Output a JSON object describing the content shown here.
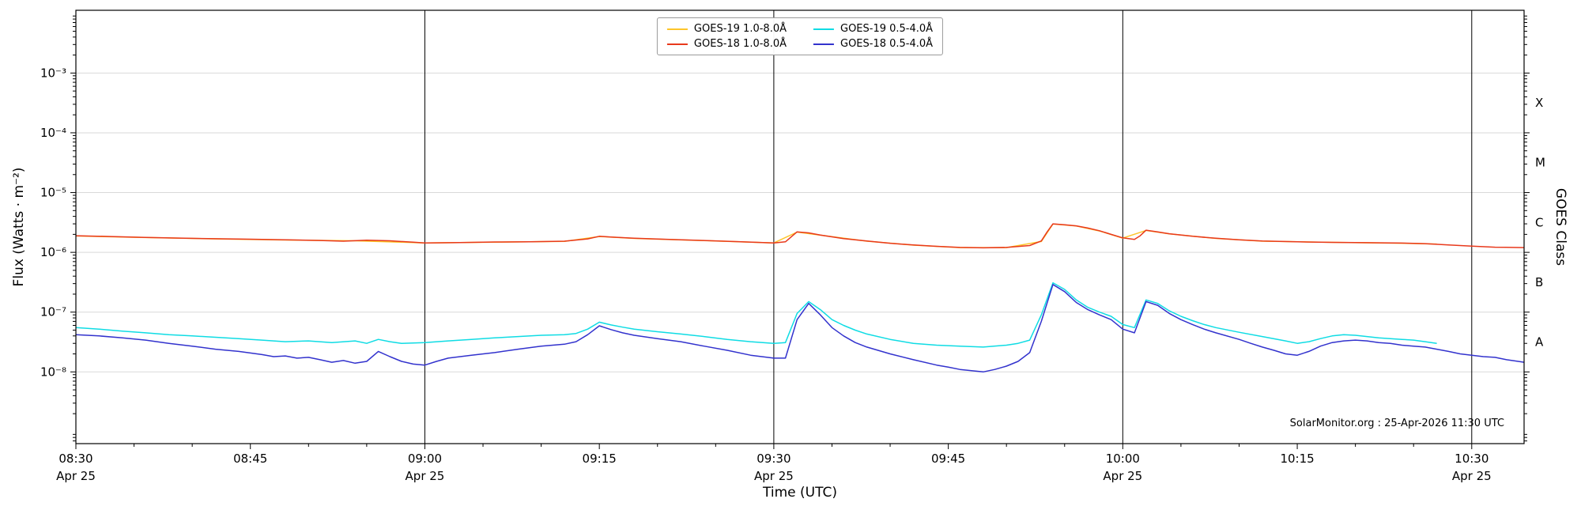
{
  "chart_data": {
    "type": "line",
    "title": "",
    "xlabel": "Time (UTC)",
    "ylabel": "Flux (Watts · m⁻²)",
    "ylabel_right": "GOES Class",
    "watermark": "SolarMonitor.org : 25-Apr-2026 11:30 UTC",
    "grid": "horizontal-decades",
    "grid_color": "#d9d9d9",
    "axis_color": "#000000",
    "legend_position": "top-center",
    "x_domain_minutes": [
      0,
      124.5
    ],
    "x_minor_step_minutes": 5,
    "ylim_log10": [
      -9.2,
      -1.95
    ],
    "x_ticks": [
      {
        "minute": 0,
        "label": "08:30",
        "date": "Apr 25"
      },
      {
        "minute": 15,
        "label": "08:45"
      },
      {
        "minute": 30,
        "label": "09:00",
        "date": "Apr 25",
        "line": true
      },
      {
        "minute": 45,
        "label": "09:15"
      },
      {
        "minute": 60,
        "label": "09:30",
        "date": "Apr 25",
        "line": true
      },
      {
        "minute": 75,
        "label": "09:45"
      },
      {
        "minute": 90,
        "label": "10:00",
        "date": "Apr 25",
        "line": true
      },
      {
        "minute": 105,
        "label": "10:15"
      },
      {
        "minute": 120,
        "label": "10:30",
        "date": "Apr 25",
        "line": true
      }
    ],
    "y_ticks": [
      {
        "exp": -3,
        "label": "10⁻³"
      },
      {
        "exp": -4,
        "label": "10⁻⁴"
      },
      {
        "exp": -5,
        "label": "10⁻⁵"
      },
      {
        "exp": -6,
        "label": "10⁻⁶"
      },
      {
        "exp": -7,
        "label": "10⁻⁷"
      },
      {
        "exp": -8,
        "label": "10⁻⁸"
      }
    ],
    "goes_classes": [
      {
        "label": "X",
        "log10_mid": -3.5
      },
      {
        "label": "M",
        "log10_mid": -4.5
      },
      {
        "label": "C",
        "log10_mid": -5.5
      },
      {
        "label": "B",
        "log10_mid": -6.5
      },
      {
        "label": "A",
        "log10_mid": -7.5
      }
    ],
    "series": [
      {
        "key": "goes19-long",
        "name": "GOES-19 1.0-8.0Å",
        "color": "#fdc52a",
        "points": [
          [
            0,
            1.88e-06
          ],
          [
            6,
            1.77e-06
          ],
          [
            12,
            1.68e-06
          ],
          [
            18,
            1.61e-06
          ],
          [
            24,
            1.56e-06
          ],
          [
            30,
            1.44e-06
          ],
          [
            36,
            1.48e-06
          ],
          [
            42,
            1.53e-06
          ],
          [
            45,
            1.84e-06
          ],
          [
            48,
            1.71e-06
          ],
          [
            54,
            1.57e-06
          ],
          [
            60,
            1.44e-06
          ],
          [
            62,
            2.18e-06
          ],
          [
            64,
            1.94e-06
          ],
          [
            68,
            1.54e-06
          ],
          [
            72,
            1.32e-06
          ],
          [
            76,
            1.2e-06
          ],
          [
            80,
            1.2e-06
          ],
          [
            83,
            1.52e-06
          ],
          [
            84,
            2.98e-06
          ],
          [
            86,
            2.76e-06
          ],
          [
            88,
            2.28e-06
          ],
          [
            90,
            1.73e-06
          ],
          [
            92,
            2.33e-06
          ],
          [
            94,
            2.04e-06
          ],
          [
            98,
            1.71e-06
          ],
          [
            102,
            1.54e-06
          ],
          [
            106,
            1.49e-06
          ],
          [
            110,
            1.45e-06
          ],
          [
            114,
            1.42e-06
          ],
          [
            117,
            1.38e-06
          ]
        ]
      },
      {
        "key": "goes18-long",
        "name": "GOES-18 1.0-8.0Å",
        "color": "#e8391c",
        "points": [
          [
            0,
            1.9e-06
          ],
          [
            3,
            1.84e-06
          ],
          [
            6,
            1.78e-06
          ],
          [
            9,
            1.73e-06
          ],
          [
            12,
            1.69e-06
          ],
          [
            15,
            1.66e-06
          ],
          [
            18,
            1.62e-06
          ],
          [
            21,
            1.58e-06
          ],
          [
            23,
            1.54e-06
          ],
          [
            25,
            1.6e-06
          ],
          [
            27,
            1.56e-06
          ],
          [
            29,
            1.48e-06
          ],
          [
            30,
            1.44e-06
          ],
          [
            33,
            1.46e-06
          ],
          [
            36,
            1.49e-06
          ],
          [
            39,
            1.5e-06
          ],
          [
            42,
            1.54e-06
          ],
          [
            44,
            1.68e-06
          ],
          [
            45,
            1.86e-06
          ],
          [
            46,
            1.8e-06
          ],
          [
            48,
            1.72e-06
          ],
          [
            51,
            1.65e-06
          ],
          [
            54,
            1.58e-06
          ],
          [
            57,
            1.51e-06
          ],
          [
            60,
            1.44e-06
          ],
          [
            61,
            1.5e-06
          ],
          [
            62,
            2.2e-06
          ],
          [
            63,
            2.12e-06
          ],
          [
            64,
            1.95e-06
          ],
          [
            66,
            1.7e-06
          ],
          [
            68,
            1.55e-06
          ],
          [
            70,
            1.42e-06
          ],
          [
            72,
            1.33e-06
          ],
          [
            74,
            1.26e-06
          ],
          [
            76,
            1.21e-06
          ],
          [
            78,
            1.19e-06
          ],
          [
            80,
            1.21e-06
          ],
          [
            82,
            1.3e-06
          ],
          [
            83,
            1.55e-06
          ],
          [
            83.5,
            2.2e-06
          ],
          [
            84,
            3e-06
          ],
          [
            85,
            2.9e-06
          ],
          [
            86,
            2.78e-06
          ],
          [
            87,
            2.55e-06
          ],
          [
            88,
            2.3e-06
          ],
          [
            89,
            2e-06
          ],
          [
            90,
            1.75e-06
          ],
          [
            91,
            1.65e-06
          ],
          [
            91.5,
            1.9e-06
          ],
          [
            92,
            2.35e-06
          ],
          [
            93,
            2.2e-06
          ],
          [
            94,
            2.05e-06
          ],
          [
            96,
            1.86e-06
          ],
          [
            98,
            1.72e-06
          ],
          [
            100,
            1.62e-06
          ],
          [
            102,
            1.55e-06
          ],
          [
            105,
            1.5e-06
          ],
          [
            108,
            1.47e-06
          ],
          [
            111,
            1.45e-06
          ],
          [
            114,
            1.43e-06
          ],
          [
            116,
            1.4e-06
          ],
          [
            118,
            1.33e-06
          ],
          [
            120,
            1.27e-06
          ],
          [
            122,
            1.22e-06
          ],
          [
            124.5,
            1.2e-06
          ]
        ]
      },
      {
        "key": "goes19-short",
        "name": "GOES-19 0.5-4.0Å",
        "color": "#0fdce4",
        "points": [
          [
            0,
            5.5e-08
          ],
          [
            2,
            5.2e-08
          ],
          [
            4,
            4.8e-08
          ],
          [
            6,
            4.5e-08
          ],
          [
            8,
            4.2e-08
          ],
          [
            10,
            4e-08
          ],
          [
            12,
            3.8e-08
          ],
          [
            14,
            3.6e-08
          ],
          [
            16,
            3.4e-08
          ],
          [
            18,
            3.2e-08
          ],
          [
            20,
            3.3e-08
          ],
          [
            22,
            3.1e-08
          ],
          [
            24,
            3.3e-08
          ],
          [
            25,
            3e-08
          ],
          [
            26,
            3.5e-08
          ],
          [
            27,
            3.2e-08
          ],
          [
            28,
            3e-08
          ],
          [
            30,
            3.1e-08
          ],
          [
            32,
            3.3e-08
          ],
          [
            34,
            3.5e-08
          ],
          [
            36,
            3.7e-08
          ],
          [
            38,
            3.9e-08
          ],
          [
            40,
            4.1e-08
          ],
          [
            42,
            4.2e-08
          ],
          [
            43,
            4.4e-08
          ],
          [
            44,
            5.2e-08
          ],
          [
            45,
            6.8e-08
          ],
          [
            46,
            6.1e-08
          ],
          [
            47,
            5.6e-08
          ],
          [
            48,
            5.2e-08
          ],
          [
            50,
            4.7e-08
          ],
          [
            52,
            4.3e-08
          ],
          [
            54,
            3.9e-08
          ],
          [
            56,
            3.5e-08
          ],
          [
            58,
            3.2e-08
          ],
          [
            60,
            3e-08
          ],
          [
            61,
            3.1e-08
          ],
          [
            62,
            9.5e-08
          ],
          [
            63,
            1.5e-07
          ],
          [
            64,
            1.1e-07
          ],
          [
            65,
            7.5e-08
          ],
          [
            66,
            6e-08
          ],
          [
            67,
            5e-08
          ],
          [
            68,
            4.3e-08
          ],
          [
            70,
            3.5e-08
          ],
          [
            72,
            3e-08
          ],
          [
            74,
            2.8e-08
          ],
          [
            76,
            2.7e-08
          ],
          [
            78,
            2.6e-08
          ],
          [
            80,
            2.8e-08
          ],
          [
            81,
            3e-08
          ],
          [
            82,
            3.4e-08
          ],
          [
            83,
            9e-08
          ],
          [
            84,
            3.1e-07
          ],
          [
            85,
            2.4e-07
          ],
          [
            86,
            1.6e-07
          ],
          [
            87,
            1.2e-07
          ],
          [
            88,
            1e-07
          ],
          [
            89,
            8.5e-08
          ],
          [
            90,
            6.2e-08
          ],
          [
            91,
            5.5e-08
          ],
          [
            92,
            1.6e-07
          ],
          [
            93,
            1.4e-07
          ],
          [
            94,
            1.05e-07
          ],
          [
            95,
            8.5e-08
          ],
          [
            96,
            7.2e-08
          ],
          [
            97,
            6.2e-08
          ],
          [
            98,
            5.5e-08
          ],
          [
            100,
            4.6e-08
          ],
          [
            102,
            3.9e-08
          ],
          [
            104,
            3.3e-08
          ],
          [
            105,
            3e-08
          ],
          [
            106,
            3.2e-08
          ],
          [
            107,
            3.6e-08
          ],
          [
            108,
            4e-08
          ],
          [
            109,
            4.2e-08
          ],
          [
            110,
            4.1e-08
          ],
          [
            111,
            3.9e-08
          ],
          [
            112,
            3.7e-08
          ],
          [
            113,
            3.6e-08
          ],
          [
            114,
            3.5e-08
          ],
          [
            115,
            3.4e-08
          ],
          [
            116,
            3.2e-08
          ],
          [
            117,
            3e-08
          ]
        ]
      },
      {
        "key": "goes18-short",
        "name": "GOES-18 0.5-4.0Å",
        "color": "#3232cd",
        "points": [
          [
            0,
            4.2e-08
          ],
          [
            2,
            4e-08
          ],
          [
            4,
            3.7e-08
          ],
          [
            6,
            3.4e-08
          ],
          [
            8,
            3e-08
          ],
          [
            10,
            2.7e-08
          ],
          [
            12,
            2.4e-08
          ],
          [
            14,
            2.2e-08
          ],
          [
            16,
            1.95e-08
          ],
          [
            17,
            1.8e-08
          ],
          [
            18,
            1.85e-08
          ],
          [
            19,
            1.7e-08
          ],
          [
            20,
            1.75e-08
          ],
          [
            21,
            1.6e-08
          ],
          [
            22,
            1.45e-08
          ],
          [
            23,
            1.55e-08
          ],
          [
            24,
            1.4e-08
          ],
          [
            25,
            1.5e-08
          ],
          [
            26,
            2.2e-08
          ],
          [
            27,
            1.8e-08
          ],
          [
            28,
            1.5e-08
          ],
          [
            29,
            1.35e-08
          ],
          [
            30,
            1.3e-08
          ],
          [
            31,
            1.5e-08
          ],
          [
            32,
            1.7e-08
          ],
          [
            34,
            1.9e-08
          ],
          [
            36,
            2.1e-08
          ],
          [
            38,
            2.4e-08
          ],
          [
            40,
            2.7e-08
          ],
          [
            42,
            2.9e-08
          ],
          [
            43,
            3.2e-08
          ],
          [
            44,
            4.2e-08
          ],
          [
            45,
            5.9e-08
          ],
          [
            46,
            5.1e-08
          ],
          [
            47,
            4.5e-08
          ],
          [
            48,
            4.1e-08
          ],
          [
            50,
            3.6e-08
          ],
          [
            52,
            3.2e-08
          ],
          [
            54,
            2.7e-08
          ],
          [
            56,
            2.3e-08
          ],
          [
            58,
            1.9e-08
          ],
          [
            60,
            1.7e-08
          ],
          [
            61,
            1.7e-08
          ],
          [
            62,
            7.5e-08
          ],
          [
            63,
            1.4e-07
          ],
          [
            64,
            9e-08
          ],
          [
            65,
            5.5e-08
          ],
          [
            66,
            4e-08
          ],
          [
            67,
            3.1e-08
          ],
          [
            68,
            2.6e-08
          ],
          [
            70,
            2e-08
          ],
          [
            72,
            1.6e-08
          ],
          [
            74,
            1.3e-08
          ],
          [
            75,
            1.2e-08
          ],
          [
            76,
            1.1e-08
          ],
          [
            77,
            1.05e-08
          ],
          [
            78,
            1e-08
          ],
          [
            79,
            1.1e-08
          ],
          [
            80,
            1.25e-08
          ],
          [
            81,
            1.5e-08
          ],
          [
            82,
            2.1e-08
          ],
          [
            83,
            7e-08
          ],
          [
            84,
            2.9e-07
          ],
          [
            85,
            2.2e-07
          ],
          [
            86,
            1.45e-07
          ],
          [
            87,
            1.1e-07
          ],
          [
            88,
            9e-08
          ],
          [
            89,
            7.5e-08
          ],
          [
            90,
            5.2e-08
          ],
          [
            91,
            4.5e-08
          ],
          [
            92,
            1.5e-07
          ],
          [
            93,
            1.3e-07
          ],
          [
            94,
            9.5e-08
          ],
          [
            95,
            7.5e-08
          ],
          [
            96,
            6.2e-08
          ],
          [
            97,
            5.2e-08
          ],
          [
            98,
            4.5e-08
          ],
          [
            100,
            3.5e-08
          ],
          [
            101,
            3e-08
          ],
          [
            102,
            2.6e-08
          ],
          [
            103,
            2.3e-08
          ],
          [
            104,
            2e-08
          ],
          [
            105,
            1.9e-08
          ],
          [
            106,
            2.2e-08
          ],
          [
            107,
            2.7e-08
          ],
          [
            108,
            3.1e-08
          ],
          [
            109,
            3.3e-08
          ],
          [
            110,
            3.4e-08
          ],
          [
            111,
            3.3e-08
          ],
          [
            112,
            3.1e-08
          ],
          [
            113,
            3e-08
          ],
          [
            114,
            2.8e-08
          ],
          [
            115,
            2.7e-08
          ],
          [
            116,
            2.6e-08
          ],
          [
            117,
            2.4e-08
          ],
          [
            118,
            2.2e-08
          ],
          [
            119,
            2e-08
          ],
          [
            120,
            1.9e-08
          ],
          [
            121,
            1.8e-08
          ],
          [
            122,
            1.75e-08
          ],
          [
            123,
            1.6e-08
          ],
          [
            124,
            1.5e-08
          ],
          [
            124.5,
            1.45e-08
          ]
        ]
      }
    ]
  }
}
